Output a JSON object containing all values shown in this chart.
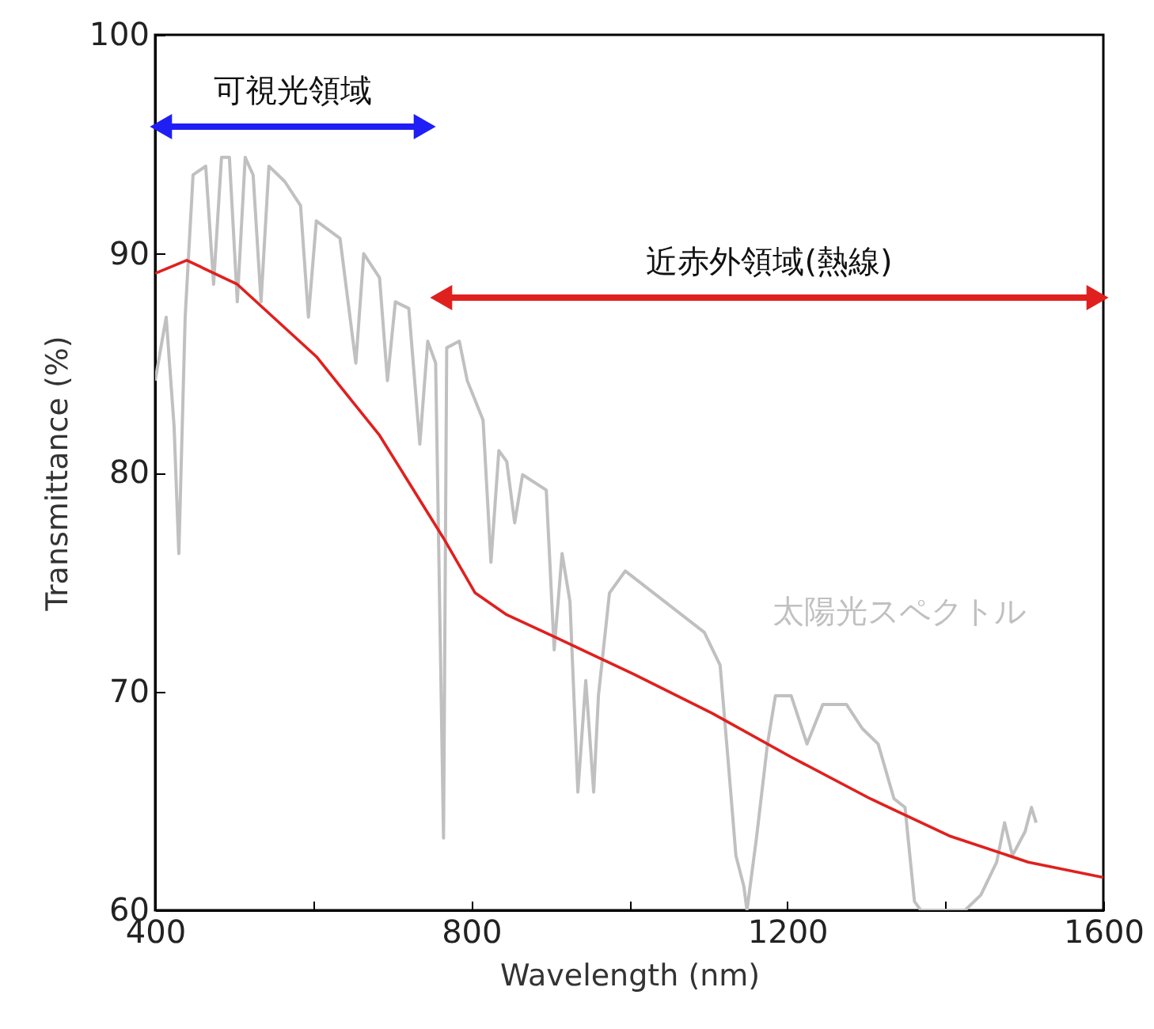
{
  "chart_data": {
    "type": "line",
    "xlabel": "Wavelength (nm)",
    "ylabel": "Transmittance (%)",
    "xlim": [
      400,
      1600
    ],
    "ylim": [
      60,
      100
    ],
    "xticks": [
      400,
      {
        "value": 600,
        "label": null
      },
      800,
      {
        "value": 1000,
        "label": null
      },
      1200,
      {
        "value": 1400,
        "label": null
      },
      1600
    ],
    "yticks": [
      60,
      70,
      80,
      90,
      100
    ],
    "series": [
      {
        "name": "太陽光スペクトル",
        "color": "#c0c0c0",
        "x": [
          400,
          414,
          424,
          430,
          438,
          448,
          464,
          474,
          484,
          494,
          504,
          514,
          524,
          534,
          544,
          564,
          584,
          594,
          604,
          634,
          654,
          664,
          684,
          694,
          704,
          721,
          735,
          745,
          755,
          765,
          769,
          785,
          795,
          815,
          825,
          835,
          845,
          855,
          865,
          895,
          905,
          915,
          925,
          935,
          945,
          955,
          961,
          975,
          995,
          1045,
          1095,
          1115,
          1125,
          1135,
          1145,
          1149,
          1161,
          1175,
          1185,
          1205,
          1225,
          1245,
          1275,
          1295,
          1315,
          1335,
          1349,
          1361,
          1369,
          1425,
          1445,
          1465,
          1475,
          1485,
          1501,
          1509,
          1515
        ],
        "values": [
          84.2,
          87.1,
          82.1,
          76.3,
          87.1,
          93.6,
          94,
          88.6,
          94.4,
          94.4,
          87.8,
          94.4,
          93.6,
          87.8,
          94,
          93.3,
          92.2,
          87.1,
          91.5,
          90.7,
          85,
          90,
          88.9,
          84.2,
          87.8,
          87.5,
          81.3,
          86,
          85,
          63.3,
          85.7,
          86,
          84.2,
          82.4,
          75.9,
          81,
          80.5,
          77.7,
          79.9,
          79.2,
          71.9,
          76.3,
          74.1,
          65.4,
          70.5,
          65.4,
          69.8,
          74.5,
          75.5,
          74.1,
          72.7,
          71.2,
          66.9,
          62.5,
          61.1,
          60,
          63.3,
          67.6,
          69.8,
          69.8,
          67.6,
          69.4,
          69.4,
          68.3,
          67.6,
          65.1,
          64.7,
          60.4,
          60,
          60,
          60.7,
          62.2,
          64,
          62.5,
          63.6,
          64.7,
          64
        ]
      },
      {
        "color": "#e0201e",
        "x": [
          400,
          440,
          504,
          604,
          684,
          765,
          805,
          845,
          905,
          1005,
          1105,
          1205,
          1305,
          1405,
          1505,
          1600
        ],
        "values": [
          89.1,
          89.7,
          88.6,
          85.3,
          81.7,
          77,
          74.5,
          73.5,
          72.5,
          70.8,
          69,
          67,
          65.1,
          63.4,
          62.2,
          61.5
        ]
      }
    ],
    "annotations": [
      "可視光領域",
      "近赤外領域(熱線)"
    ],
    "grid": false,
    "marker": "none",
    "line_style": "solid"
  }
}
